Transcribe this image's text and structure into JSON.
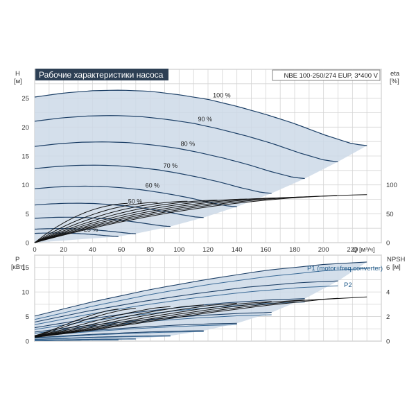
{
  "chart_data": [
    {
      "type": "line",
      "title": "Рабочие характеристики насоса",
      "model": "NBE 100-250/274 EUP, 3*400 V",
      "xlabel": "Q [м³/ч]",
      "ylabel": "H",
      "ylabel_unit": "[м]",
      "ylabel_right": "eta",
      "ylabel_right_unit": "[%]",
      "xlim": [
        0,
        240
      ],
      "ylim": [
        0,
        30
      ],
      "ylim_right": [
        0,
        300
      ],
      "x_ticks": [
        "0",
        "20",
        "40",
        "60",
        "80",
        "100",
        "120",
        "140",
        "160",
        "180",
        "200",
        "220"
      ],
      "x_tick_values": [
        0,
        20,
        40,
        60,
        80,
        100,
        120,
        140,
        160,
        180,
        200,
        220
      ],
      "y_ticks": [
        "0",
        "5",
        "10",
        "15",
        "20",
        "25"
      ],
      "y_tick_values": [
        0,
        5,
        10,
        15,
        20,
        25
      ],
      "y_right_ticks": [
        "0",
        "50",
        "100"
      ],
      "y_right_tick_values": [
        0,
        50,
        100
      ],
      "grid": true,
      "region_color": "#ccd9e8",
      "curve_color": "#1c3f66",
      "speed_curves": [
        {
          "label": "100 %",
          "Qmax": 230,
          "H0": 25.2,
          "points": [
            [
              0,
              25.2
            ],
            [
              20,
              25.9
            ],
            [
              40,
              26.3
            ],
            [
              60,
              26.4
            ],
            [
              80,
              26.2
            ],
            [
              100,
              25.6
            ],
            [
              120,
              24.8
            ],
            [
              140,
              23.6
            ],
            [
              160,
              22.2
            ],
            [
              180,
              20.6
            ],
            [
              200,
              18.7
            ],
            [
              220,
              17.1
            ],
            [
              230,
              16.8
            ]
          ]
        },
        {
          "label": "90 %",
          "Qmax": 210
        },
        {
          "label": "80 %",
          "Qmax": 187
        },
        {
          "label": "70 %",
          "Qmax": 164
        },
        {
          "label": "60 %",
          "Qmax": 140
        },
        {
          "label": "50 %",
          "Qmax": 117
        },
        {
          "label": "",
          "Qmax": 94
        },
        {
          "label": "",
          "Qmax": 70
        },
        {
          "label": "25 %",
          "Qmax": 58
        }
      ],
      "eta_curves_count": 9,
      "eta_peak_percent": 83
    },
    {
      "type": "line",
      "xlabel": "",
      "ylabel": "P",
      "ylabel_unit": "[кВт]",
      "ylabel_right": "NPSH",
      "ylabel_right_unit": "[м]",
      "xlim": [
        0,
        240
      ],
      "ylim": [
        0,
        17.5
      ],
      "ylim_right": [
        0,
        7
      ],
      "x_ticks": [],
      "y_ticks": [
        "0",
        "5",
        "10",
        "15"
      ],
      "y_tick_values": [
        0,
        5,
        10,
        15
      ],
      "y_right_ticks": [
        "0",
        "2",
        "4",
        "6"
      ],
      "y_right_tick_values": [
        0,
        2,
        4,
        6
      ],
      "grid": true,
      "series": [
        {
          "name": "P1 (motor+freq.converter)",
          "values": [
            [
              0,
              5.1
            ],
            [
              40,
              8.0
            ],
            [
              80,
              10.5
            ],
            [
              120,
              12.6
            ],
            [
              160,
              14.4
            ],
            [
              200,
              15.6
            ],
            [
              230,
              16.1
            ]
          ]
        },
        {
          "name": "P2",
          "values": [
            [
              0,
              4.4
            ],
            [
              40,
              7.1
            ],
            [
              80,
              9.5
            ],
            [
              120,
              11.5
            ],
            [
              160,
              13.1
            ],
            [
              200,
              14.3
            ],
            [
              230,
              14.8
            ]
          ]
        },
        {
          "name": "NPSH",
          "values": [
            [
              0,
              0.3
            ],
            [
              40,
              0.9
            ],
            [
              80,
              1.6
            ],
            [
              120,
              2.3
            ],
            [
              160,
              2.9
            ],
            [
              200,
              3.4
            ],
            [
              230,
              3.6
            ]
          ]
        }
      ]
    }
  ]
}
